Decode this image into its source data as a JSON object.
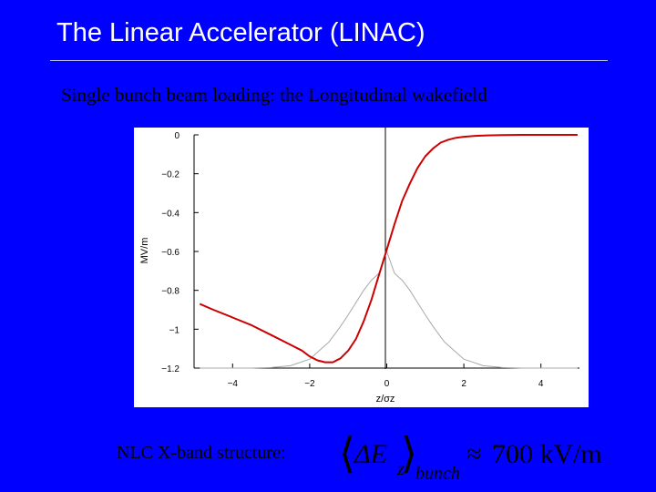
{
  "slide": {
    "title": "The Linear Accelerator (LINAC)",
    "subtitle": "Single bunch beam loading: the Longitudinal wakefield",
    "footer_label": "NLC X-band structure:",
    "formula": {
      "bracket_open": "⟨",
      "delta_e": "ΔE",
      "subscript_z": "z",
      "bracket_close": "⟩",
      "subscript_bunch": "bunch",
      "approx": "≈",
      "value": "700 kV/m"
    }
  },
  "chart_data": {
    "type": "line",
    "ylabel": "MV/m",
    "xlabel": "z/σz",
    "xlim": [
      -5.0,
      5.0
    ],
    "ylim": [
      -1.2,
      0.0
    ],
    "x_ticks": [
      -4,
      -2,
      0,
      2,
      4
    ],
    "x_tick_labels": [
      "−4",
      "−2",
      "0",
      "2",
      "4"
    ],
    "y_ticks": [
      0,
      -0.2,
      -0.4,
      -0.6,
      -0.8,
      -1,
      -1.2
    ],
    "y_tick_labels": [
      "0",
      "−0.2",
      "−0.4",
      "−0.6",
      "−0.8",
      "−1",
      "−1.2"
    ],
    "series": [
      {
        "color": "#cc0000",
        "x": [
          -4.85,
          -4.5,
          -4.0,
          -3.5,
          -3.0,
          -2.5,
          -2.2,
          -2.0,
          -1.8,
          -1.6,
          -1.4,
          -1.2,
          -1.0,
          -0.8,
          -0.6,
          -0.4,
          -0.2,
          0.0,
          0.2,
          0.4,
          0.6,
          0.8,
          1.0,
          1.2,
          1.4,
          1.6,
          1.8,
          2.0,
          2.3,
          2.6,
          3.0,
          3.5,
          4.0,
          4.5,
          4.95
        ],
        "y": [
          -0.87,
          -0.9,
          -0.94,
          -0.98,
          -1.03,
          -1.08,
          -1.11,
          -1.14,
          -1.16,
          -1.17,
          -1.17,
          -1.15,
          -1.11,
          -1.05,
          -0.96,
          -0.85,
          -0.72,
          -0.59,
          -0.46,
          -0.34,
          -0.25,
          -0.17,
          -0.11,
          -0.07,
          -0.04,
          -0.025,
          -0.015,
          -0.01,
          -0.005,
          -0.003,
          -0.001,
          0.0,
          0.0,
          0.0,
          0.0
        ]
      },
      {
        "color": "#a8a8a8",
        "x": [
          -4.85,
          -4.5,
          -4.0,
          -3.5,
          -3.0,
          -2.5,
          -2.0,
          -1.5,
          -1.2,
          -1.0,
          -0.8,
          -0.6,
          -0.4,
          -0.2,
          0.0,
          0.2,
          0.4,
          0.6,
          0.8,
          1.0,
          1.2,
          1.5,
          2.0,
          2.5,
          3.0,
          3.5,
          4.0,
          4.5,
          4.95
        ],
        "y": [
          -1.2,
          -1.2,
          -1.2,
          -1.2,
          -1.197,
          -1.188,
          -1.154,
          -1.066,
          -0.986,
          -0.926,
          -0.863,
          -0.8,
          -0.748,
          -0.712,
          -0.6,
          -0.712,
          -0.748,
          -0.8,
          -0.863,
          -0.926,
          -0.986,
          -1.066,
          -1.154,
          -1.188,
          -1.197,
          -1.2,
          -1.2,
          -1.2,
          -1.2
        ]
      }
    ]
  }
}
